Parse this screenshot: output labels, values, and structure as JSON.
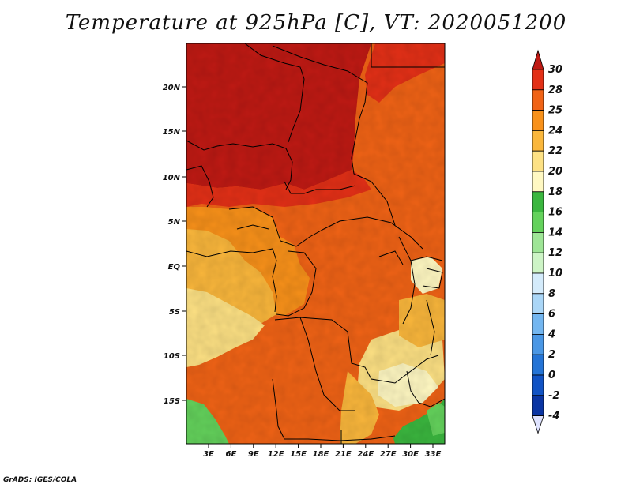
{
  "title": "Temperature at 925hPa [C], VT: 2020051200",
  "credit": "GrADS: IGES/COLA",
  "map": {
    "region": "Central Africa",
    "lat_labels": [
      "20N",
      "15N",
      "10N",
      "5N",
      "EQ",
      "5S",
      "10S",
      "15S"
    ],
    "lon_labels": [
      "3E",
      "6E",
      "9E",
      "12E",
      "15E",
      "18E",
      "21E",
      "24E",
      "27E",
      "30E",
      "33E"
    ]
  },
  "colorbar": {
    "ticks": [
      "30",
      "28",
      "25",
      "24",
      "22",
      "20",
      "18",
      "16",
      "14",
      "12",
      "10",
      "8",
      "6",
      "4",
      "2",
      "0",
      "-2",
      "-4"
    ],
    "colors": {
      "above30": "#bf1a14",
      "t28_30": "#e33017",
      "t25_28": "#f06316",
      "t24_25": "#f8911a",
      "t22_24": "#fab73c",
      "t20_22": "#fde184",
      "t18_20": "#fff8c2",
      "t16_18": "#3bb73f",
      "t14_16": "#64d25c",
      "t12_14": "#9ee596",
      "t10_12": "#cdf4c6",
      "t8_10": "#d4ebfb",
      "t6_8": "#aad6f7",
      "t4_6": "#73b6f0",
      "t2_4": "#4a97e5",
      "t0_2": "#2474d6",
      "tm2_0": "#1153c4",
      "tm4_m2": "#0a35a3",
      "below_m4": "#0a1d6d",
      "end_tri": "#dfe3ff"
    }
  }
}
